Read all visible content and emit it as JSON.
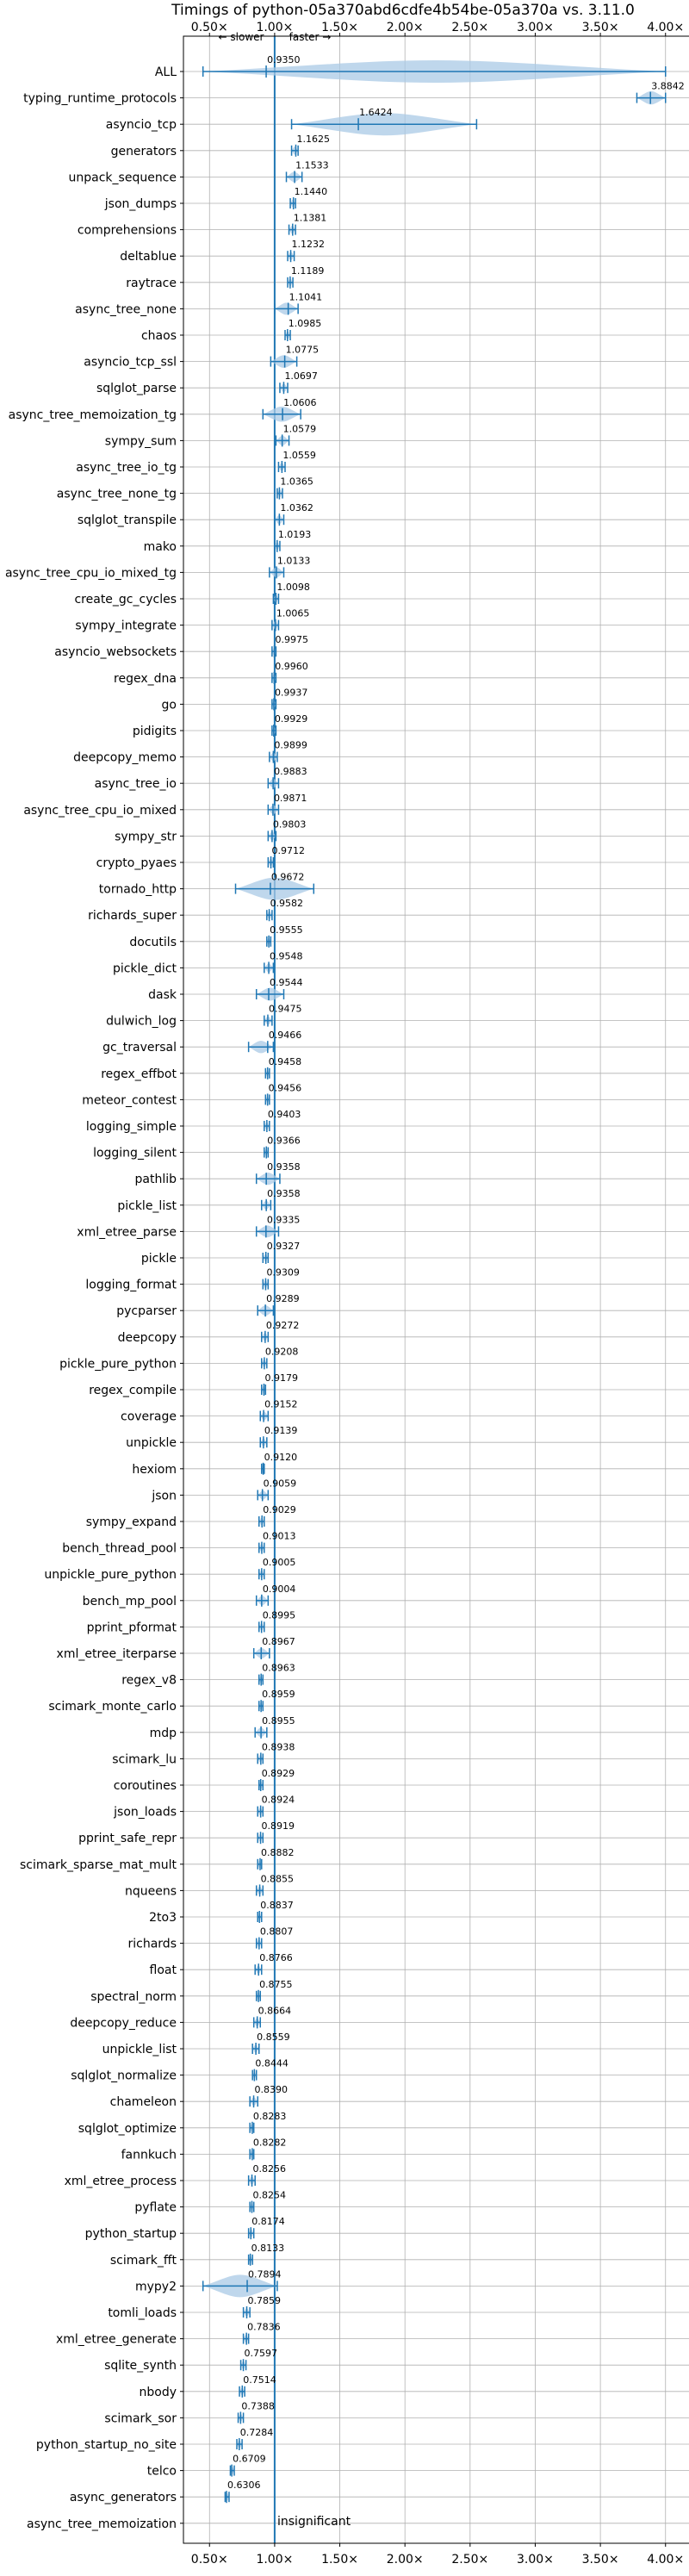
{
  "chart_data": {
    "type": "violin",
    "title": "Timings of python-05a370abd6cdfe4b54be-05a370a vs. 3.11.0",
    "xlim": [
      0.3,
      4.2
    ],
    "xticks": [
      0.5,
      1.0,
      1.5,
      2.0,
      2.5,
      3.0,
      3.5,
      4.0
    ],
    "xtick_labels": [
      "0.50×",
      "1.00×",
      "1.50×",
      "2.00×",
      "2.50×",
      "3.00×",
      "3.50×",
      "4.00×"
    ],
    "grid": true,
    "reference_line": 1.0,
    "slower_label": "← slower",
    "faster_label": "faster →",
    "insignificant_label": "insignificant",
    "benchmarks": [
      {
        "name": "ALL",
        "value": 0.935,
        "min": 0.45,
        "max": 4.0
      },
      {
        "name": "typing_runtime_protocols",
        "value": 3.8842,
        "min": 3.78,
        "max": 4.0
      },
      {
        "name": "asyncio_tcp",
        "value": 1.6424,
        "min": 1.13,
        "max": 2.55
      },
      {
        "name": "generators",
        "value": 1.1625,
        "min": 1.13,
        "max": 1.18
      },
      {
        "name": "unpack_sequence",
        "value": 1.1533,
        "min": 1.09,
        "max": 1.21
      },
      {
        "name": "json_dumps",
        "value": 1.144,
        "min": 1.12,
        "max": 1.16
      },
      {
        "name": "comprehensions",
        "value": 1.1381,
        "min": 1.11,
        "max": 1.16
      },
      {
        "name": "deltablue",
        "value": 1.1232,
        "min": 1.1,
        "max": 1.15
      },
      {
        "name": "raytrace",
        "value": 1.1189,
        "min": 1.1,
        "max": 1.14
      },
      {
        "name": "async_tree_none",
        "value": 1.1041,
        "min": 1.0,
        "max": 1.18
      },
      {
        "name": "chaos",
        "value": 1.0985,
        "min": 1.08,
        "max": 1.12
      },
      {
        "name": "asyncio_tcp_ssl",
        "value": 1.0775,
        "min": 0.97,
        "max": 1.17
      },
      {
        "name": "sqlglot_parse",
        "value": 1.0697,
        "min": 1.04,
        "max": 1.1
      },
      {
        "name": "async_tree_memoization_tg",
        "value": 1.0606,
        "min": 0.91,
        "max": 1.2
      },
      {
        "name": "sympy_sum",
        "value": 1.0579,
        "min": 1.01,
        "max": 1.11
      },
      {
        "name": "async_tree_io_tg",
        "value": 1.0559,
        "min": 1.03,
        "max": 1.08
      },
      {
        "name": "async_tree_none_tg",
        "value": 1.0365,
        "min": 1.02,
        "max": 1.06
      },
      {
        "name": "sqlglot_transpile",
        "value": 1.0362,
        "min": 1.0,
        "max": 1.07
      },
      {
        "name": "mako",
        "value": 1.0193,
        "min": 1.0,
        "max": 1.04
      },
      {
        "name": "async_tree_cpu_io_mixed_tg",
        "value": 1.0133,
        "min": 0.96,
        "max": 1.07
      },
      {
        "name": "create_gc_cycles",
        "value": 1.0098,
        "min": 0.99,
        "max": 1.03
      },
      {
        "name": "sympy_integrate",
        "value": 1.0065,
        "min": 0.98,
        "max": 1.03
      },
      {
        "name": "asyncio_websockets",
        "value": 0.9975,
        "min": 0.98,
        "max": 1.01
      },
      {
        "name": "regex_dna",
        "value": 0.996,
        "min": 0.98,
        "max": 1.01
      },
      {
        "name": "go",
        "value": 0.9937,
        "min": 0.98,
        "max": 1.01
      },
      {
        "name": "pidigits",
        "value": 0.9929,
        "min": 0.98,
        "max": 1.01
      },
      {
        "name": "deepcopy_memo",
        "value": 0.9899,
        "min": 0.96,
        "max": 1.02
      },
      {
        "name": "async_tree_io",
        "value": 0.9883,
        "min": 0.95,
        "max": 1.03
      },
      {
        "name": "async_tree_cpu_io_mixed",
        "value": 0.9871,
        "min": 0.95,
        "max": 1.03
      },
      {
        "name": "sympy_str",
        "value": 0.9803,
        "min": 0.95,
        "max": 1.01
      },
      {
        "name": "crypto_pyaes",
        "value": 0.9712,
        "min": 0.95,
        "max": 0.99
      },
      {
        "name": "tornado_http",
        "value": 0.9672,
        "min": 0.7,
        "max": 1.3
      },
      {
        "name": "richards_super",
        "value": 0.9582,
        "min": 0.94,
        "max": 0.98
      },
      {
        "name": "docutils",
        "value": 0.9555,
        "min": 0.94,
        "max": 0.97
      },
      {
        "name": "pickle_dict",
        "value": 0.9548,
        "min": 0.92,
        "max": 0.99
      },
      {
        "name": "dask",
        "value": 0.9544,
        "min": 0.86,
        "max": 1.07
      },
      {
        "name": "dulwich_log",
        "value": 0.9475,
        "min": 0.92,
        "max": 0.98
      },
      {
        "name": "gc_traversal",
        "value": 0.9466,
        "min": 0.8,
        "max": 0.99
      },
      {
        "name": "regex_effbot",
        "value": 0.9458,
        "min": 0.93,
        "max": 0.96
      },
      {
        "name": "meteor_contest",
        "value": 0.9456,
        "min": 0.93,
        "max": 0.96
      },
      {
        "name": "logging_simple",
        "value": 0.9403,
        "min": 0.92,
        "max": 0.96
      },
      {
        "name": "logging_silent",
        "value": 0.9366,
        "min": 0.92,
        "max": 0.95
      },
      {
        "name": "pathlib",
        "value": 0.9358,
        "min": 0.86,
        "max": 1.04
      },
      {
        "name": "pickle_list",
        "value": 0.9358,
        "min": 0.9,
        "max": 0.97
      },
      {
        "name": "xml_etree_parse",
        "value": 0.9335,
        "min": 0.86,
        "max": 1.03
      },
      {
        "name": "pickle",
        "value": 0.9327,
        "min": 0.91,
        "max": 0.95
      },
      {
        "name": "logging_format",
        "value": 0.9309,
        "min": 0.91,
        "max": 0.95
      },
      {
        "name": "pycparser",
        "value": 0.9289,
        "min": 0.87,
        "max": 0.99
      },
      {
        "name": "deepcopy",
        "value": 0.9272,
        "min": 0.9,
        "max": 0.95
      },
      {
        "name": "pickle_pure_python",
        "value": 0.9208,
        "min": 0.9,
        "max": 0.94
      },
      {
        "name": "regex_compile",
        "value": 0.9179,
        "min": 0.9,
        "max": 0.93
      },
      {
        "name": "coverage",
        "value": 0.9152,
        "min": 0.89,
        "max": 0.95
      },
      {
        "name": "unpickle",
        "value": 0.9139,
        "min": 0.89,
        "max": 0.94
      },
      {
        "name": "hexiom",
        "value": 0.912,
        "min": 0.9,
        "max": 0.92
      },
      {
        "name": "json",
        "value": 0.9059,
        "min": 0.87,
        "max": 0.95
      },
      {
        "name": "sympy_expand",
        "value": 0.9029,
        "min": 0.88,
        "max": 0.92
      },
      {
        "name": "bench_thread_pool",
        "value": 0.9013,
        "min": 0.88,
        "max": 0.92
      },
      {
        "name": "unpickle_pure_python",
        "value": 0.9005,
        "min": 0.88,
        "max": 0.92
      },
      {
        "name": "bench_mp_pool",
        "value": 0.9004,
        "min": 0.86,
        "max": 0.95
      },
      {
        "name": "pprint_pformat",
        "value": 0.8995,
        "min": 0.88,
        "max": 0.92
      },
      {
        "name": "xml_etree_iterparse",
        "value": 0.8967,
        "min": 0.84,
        "max": 0.96
      },
      {
        "name": "regex_v8",
        "value": 0.8963,
        "min": 0.88,
        "max": 0.91
      },
      {
        "name": "scimark_monte_carlo",
        "value": 0.8959,
        "min": 0.88,
        "max": 0.91
      },
      {
        "name": "mdp",
        "value": 0.8955,
        "min": 0.85,
        "max": 0.94
      },
      {
        "name": "scimark_lu",
        "value": 0.8938,
        "min": 0.87,
        "max": 0.91
      },
      {
        "name": "coroutines",
        "value": 0.8929,
        "min": 0.88,
        "max": 0.91
      },
      {
        "name": "json_loads",
        "value": 0.8924,
        "min": 0.87,
        "max": 0.91
      },
      {
        "name": "pprint_safe_repr",
        "value": 0.8919,
        "min": 0.87,
        "max": 0.91
      },
      {
        "name": "scimark_sparse_mat_mult",
        "value": 0.8882,
        "min": 0.87,
        "max": 0.9
      },
      {
        "name": "nqueens",
        "value": 0.8855,
        "min": 0.86,
        "max": 0.91
      },
      {
        "name": "2to3",
        "value": 0.8837,
        "min": 0.87,
        "max": 0.9
      },
      {
        "name": "richards",
        "value": 0.8807,
        "min": 0.86,
        "max": 0.9
      },
      {
        "name": "float",
        "value": 0.8766,
        "min": 0.85,
        "max": 0.9
      },
      {
        "name": "spectral_norm",
        "value": 0.8755,
        "min": 0.86,
        "max": 0.89
      },
      {
        "name": "deepcopy_reduce",
        "value": 0.8664,
        "min": 0.84,
        "max": 0.89
      },
      {
        "name": "unpickle_list",
        "value": 0.8559,
        "min": 0.83,
        "max": 0.88
      },
      {
        "name": "sqlglot_normalize",
        "value": 0.8444,
        "min": 0.83,
        "max": 0.86
      },
      {
        "name": "chameleon",
        "value": 0.839,
        "min": 0.81,
        "max": 0.87
      },
      {
        "name": "sqlglot_optimize",
        "value": 0.8283,
        "min": 0.81,
        "max": 0.84
      },
      {
        "name": "fannkuch",
        "value": 0.8282,
        "min": 0.81,
        "max": 0.84
      },
      {
        "name": "xml_etree_process",
        "value": 0.8256,
        "min": 0.8,
        "max": 0.85
      },
      {
        "name": "pyflate",
        "value": 0.8254,
        "min": 0.81,
        "max": 0.84
      },
      {
        "name": "python_startup",
        "value": 0.8174,
        "min": 0.8,
        "max": 0.84
      },
      {
        "name": "scimark_fft",
        "value": 0.8133,
        "min": 0.8,
        "max": 0.83
      },
      {
        "name": "mypy2",
        "value": 0.7894,
        "min": 0.45,
        "max": 1.02
      },
      {
        "name": "tomli_loads",
        "value": 0.7859,
        "min": 0.76,
        "max": 0.81
      },
      {
        "name": "xml_etree_generate",
        "value": 0.7836,
        "min": 0.76,
        "max": 0.8
      },
      {
        "name": "sqlite_synth",
        "value": 0.7597,
        "min": 0.74,
        "max": 0.78
      },
      {
        "name": "nbody",
        "value": 0.7514,
        "min": 0.73,
        "max": 0.77
      },
      {
        "name": "scimark_sor",
        "value": 0.7388,
        "min": 0.72,
        "max": 0.76
      },
      {
        "name": "python_startup_no_site",
        "value": 0.7284,
        "min": 0.71,
        "max": 0.75
      },
      {
        "name": "telco",
        "value": 0.6709,
        "min": 0.66,
        "max": 0.69
      },
      {
        "name": "async_generators",
        "value": 0.6306,
        "min": 0.62,
        "max": 0.65
      },
      {
        "name": "async_tree_memoization",
        "value": null,
        "min": null,
        "max": null
      }
    ]
  }
}
